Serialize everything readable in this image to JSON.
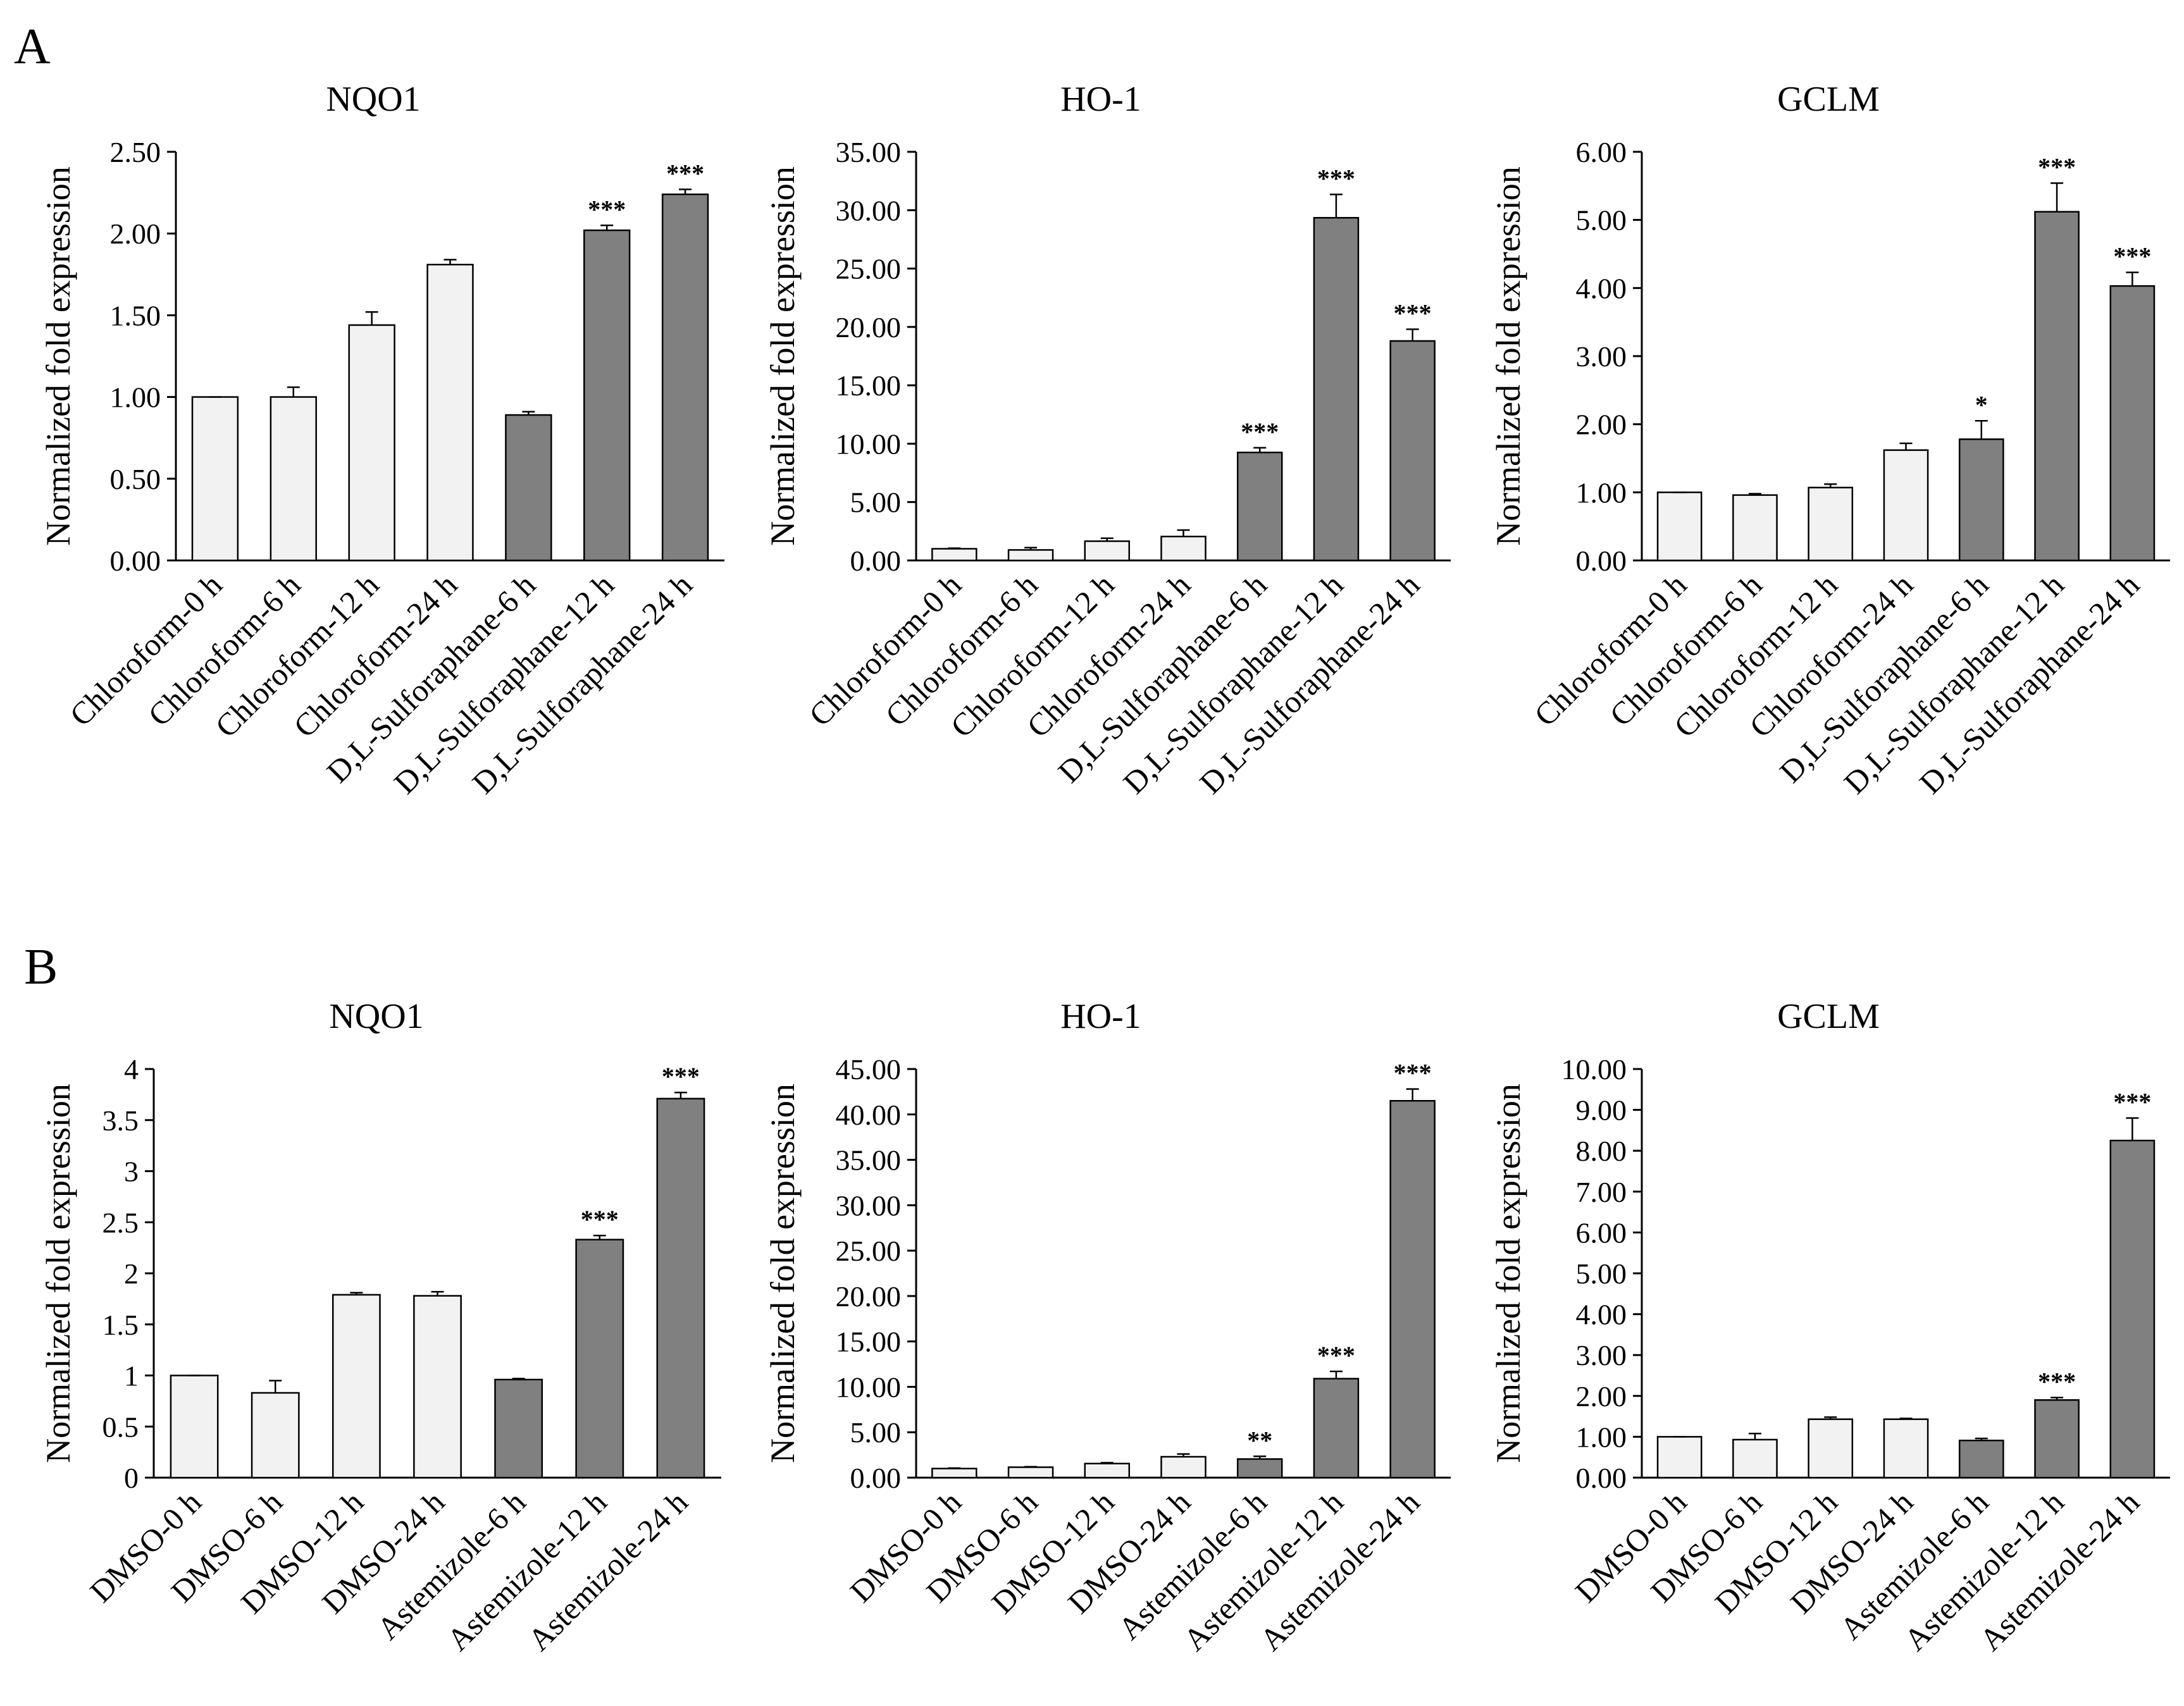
{
  "panels": [
    {
      "label": "A",
      "name": "panel-a-label"
    },
    {
      "label": "B",
      "name": "panel-b-label"
    }
  ],
  "colors": {
    "control_fill": "#f2f2f2",
    "treatment_fill": "#808080",
    "bar_stroke": "#000000"
  },
  "chart_data": [
    {
      "panel": "A",
      "type": "bar",
      "title": "NQO1",
      "xlabel": "",
      "ylabel": "Normalized fold expression",
      "ylim": [
        0,
        2.5
      ],
      "yticks": [
        "0.00",
        "0.50",
        "1.00",
        "1.50",
        "2.00",
        "2.50"
      ],
      "categories": [
        "Chloroform-0 h",
        "Chloroform-6 h",
        "Chloroform-12 h",
        "Chloroform-24 h",
        "D,L-Sulforaphane-6 h",
        "D,L-Sulforaphane-12 h",
        "D,L-Sulforaphane-24 h"
      ],
      "values": [
        1.0,
        1.0,
        1.44,
        1.81,
        0.89,
        2.02,
        2.24
      ],
      "errors": [
        0.0,
        0.06,
        0.08,
        0.03,
        0.02,
        0.03,
        0.03
      ],
      "group": [
        "control",
        "control",
        "control",
        "control",
        "treatment",
        "treatment",
        "treatment"
      ],
      "significance": [
        "",
        "",
        "",
        "",
        "",
        "***",
        "***"
      ]
    },
    {
      "panel": "A",
      "type": "bar",
      "title": "HO-1",
      "xlabel": "",
      "ylabel": "Normalized fold expression",
      "ylim": [
        0,
        35
      ],
      "yticks": [
        "0.00",
        "5.00",
        "10.00",
        "15.00",
        "20.00",
        "25.00",
        "30.00",
        "35.00"
      ],
      "categories": [
        "Chloroform-0 h",
        "Chloroform-6 h",
        "Chloroform-12 h",
        "Chloroform-24 h",
        "D,L-Sulforaphane-6 h",
        "D,L-Sulforaphane-12 h",
        "D,L-Sulforaphane-24 h"
      ],
      "values": [
        1.0,
        0.9,
        1.65,
        2.05,
        9.25,
        29.35,
        18.8
      ],
      "errors": [
        0.05,
        0.2,
        0.25,
        0.55,
        0.4,
        2.0,
        1.0
      ],
      "group": [
        "control",
        "control",
        "control",
        "control",
        "treatment",
        "treatment",
        "treatment"
      ],
      "significance": [
        "",
        "",
        "",
        "",
        "***",
        "***",
        "***"
      ]
    },
    {
      "panel": "A",
      "type": "bar",
      "title": "GCLM",
      "xlabel": "",
      "ylabel": "Normalized fold expression",
      "ylim": [
        0,
        6
      ],
      "yticks": [
        "0.00",
        "1.00",
        "2.00",
        "3.00",
        "4.00",
        "5.00",
        "6.00"
      ],
      "categories": [
        "Chloroform-0 h",
        "Chloroform-6 h",
        "Chloroform-12 h",
        "Chloroform-24 h",
        "D,L-Sulforaphane-6 h",
        "D,L-Sulforaphane-12 h",
        "D,L-Sulforaphane-24 h"
      ],
      "values": [
        1.0,
        0.96,
        1.07,
        1.62,
        1.78,
        5.12,
        4.03
      ],
      "errors": [
        0.0,
        0.02,
        0.05,
        0.1,
        0.27,
        0.42,
        0.2
      ],
      "group": [
        "control",
        "control",
        "control",
        "control",
        "treatment",
        "treatment",
        "treatment"
      ],
      "significance": [
        "",
        "",
        "",
        "",
        "*",
        "***",
        "***"
      ]
    },
    {
      "panel": "B",
      "type": "bar",
      "title": "NQO1",
      "xlabel": "",
      "ylabel": "Normalized fold expression",
      "ylim": [
        0,
        4
      ],
      "yticks": [
        "0",
        "0.5",
        "1",
        "1.5",
        "2",
        "2.5",
        "3",
        "3.5",
        "4"
      ],
      "categories": [
        "DMSO-0 h",
        "DMSO-6 h",
        "DMSO-12 h",
        "DMSO-24 h",
        "Astemizole-6 h",
        "Astemizole-12 h",
        "Astemizole-24 h"
      ],
      "values": [
        1.0,
        0.83,
        1.79,
        1.78,
        0.96,
        2.33,
        3.71
      ],
      "errors": [
        0.0,
        0.12,
        0.02,
        0.04,
        0.01,
        0.04,
        0.06
      ],
      "group": [
        "control",
        "control",
        "control",
        "control",
        "treatment",
        "treatment",
        "treatment"
      ],
      "significance": [
        "",
        "",
        "",
        "",
        "",
        "***",
        "***"
      ]
    },
    {
      "panel": "B",
      "type": "bar",
      "title": "HO-1",
      "xlabel": "",
      "ylabel": "Normalized fold expression",
      "ylim": [
        0,
        45
      ],
      "yticks": [
        "0.00",
        "5.00",
        "10.00",
        "15.00",
        "20.00",
        "25.00",
        "30.00",
        "35.00",
        "40.00",
        "45.00"
      ],
      "categories": [
        "DMSO-0 h",
        "DMSO-6 h",
        "DMSO-12 h",
        "DMSO-24 h",
        "Astemizole-6 h",
        "Astemizole-12 h",
        "Astemizole-24 h"
      ],
      "values": [
        1.0,
        1.15,
        1.55,
        2.3,
        2.05,
        10.9,
        41.5
      ],
      "errors": [
        0.05,
        0.05,
        0.1,
        0.3,
        0.3,
        0.8,
        1.3
      ],
      "group": [
        "control",
        "control",
        "control",
        "control",
        "treatment",
        "treatment",
        "treatment"
      ],
      "significance": [
        "",
        "",
        "",
        "",
        "**",
        "***",
        "***"
      ]
    },
    {
      "panel": "B",
      "type": "bar",
      "title": "GCLM",
      "xlabel": "",
      "ylabel": "Normalized fold expression",
      "ylim": [
        0,
        10
      ],
      "yticks": [
        "0.00",
        "1.00",
        "2.00",
        "3.00",
        "4.00",
        "5.00",
        "6.00",
        "7.00",
        "8.00",
        "9.00",
        "10.00"
      ],
      "categories": [
        "DMSO-0 h",
        "DMSO-6 h",
        "DMSO-12 h",
        "DMSO-24 h",
        "Astemizole-6 h",
        "Astemizole-12 h",
        "Astemizole-24 h"
      ],
      "values": [
        1.0,
        0.93,
        1.43,
        1.43,
        0.91,
        1.9,
        8.25
      ],
      "errors": [
        0.0,
        0.15,
        0.05,
        0.02,
        0.05,
        0.06,
        0.55
      ],
      "group": [
        "control",
        "control",
        "control",
        "control",
        "treatment",
        "treatment",
        "treatment"
      ],
      "significance": [
        "",
        "",
        "",
        "",
        "",
        "***",
        "***"
      ]
    }
  ]
}
